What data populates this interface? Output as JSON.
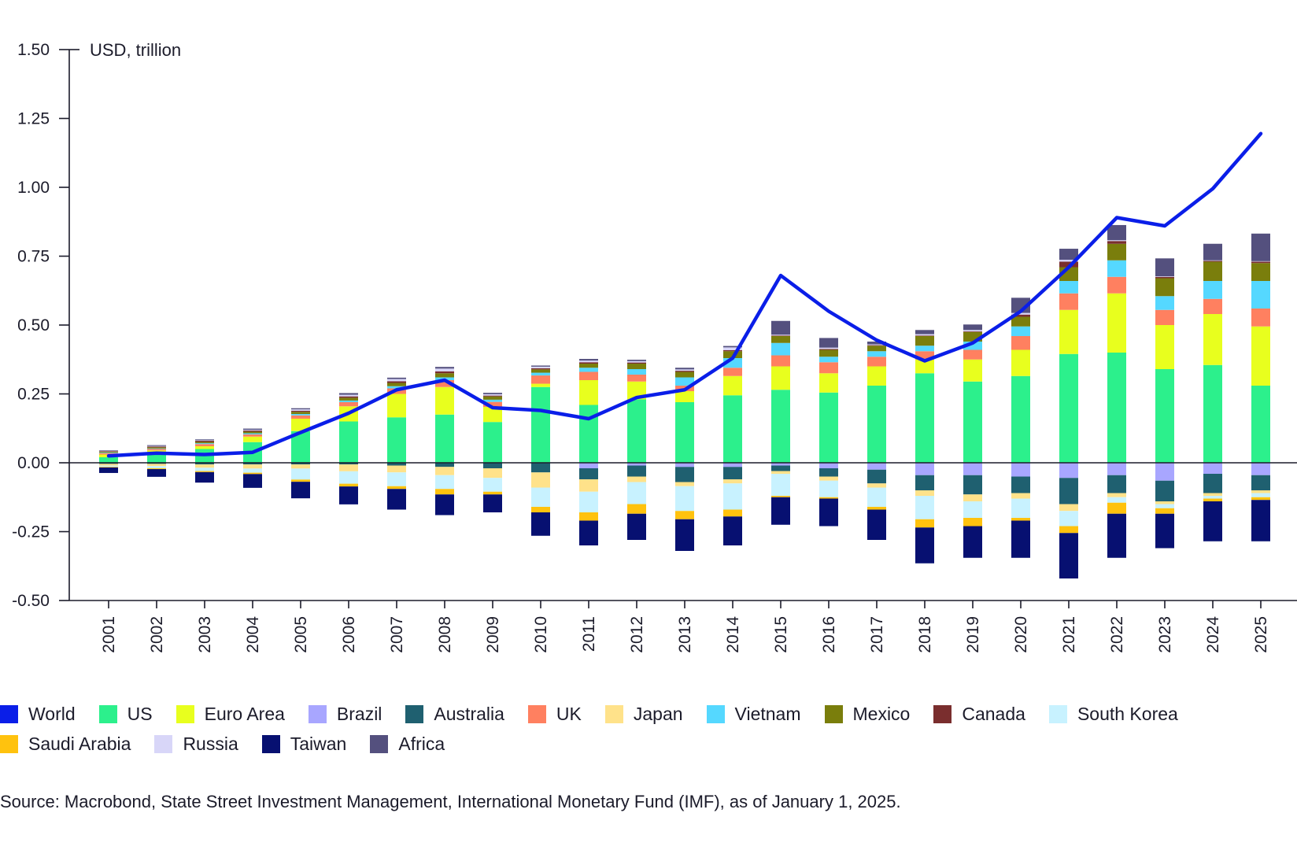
{
  "chart_data": {
    "type": "bar",
    "subtype": "stacked-bar-with-line",
    "unit_label": "USD, trillion",
    "ylim": [
      -0.5,
      1.5
    ],
    "yticks": [
      "1.50",
      "1.25",
      "1.00",
      "0.75",
      "0.50",
      "0.25",
      "0.00",
      "-0.25",
      "-0.50"
    ],
    "ytick_values": [
      1.5,
      1.25,
      1.0,
      0.75,
      0.5,
      0.25,
      0.0,
      -0.25,
      -0.5
    ],
    "categories": [
      "2001",
      "2002",
      "2003",
      "2004",
      "2005",
      "2006",
      "2007",
      "2008",
      "2009",
      "2010",
      "2011",
      "2012",
      "2013",
      "2014",
      "2015",
      "2016",
      "2017",
      "2018",
      "2019",
      "2020",
      "2021",
      "2022",
      "2023",
      "2024",
      "2025"
    ],
    "legend_order": [
      "World",
      "US",
      "Euro Area",
      "Brazil",
      "Australia",
      "UK",
      "Japan",
      "Vietnam",
      "Mexico",
      "Canada",
      "South Korea",
      "Saudi Arabia",
      "Russia",
      "Taiwan",
      "Africa"
    ],
    "line": {
      "name": "World",
      "color": "#0a1ee8",
      "values": [
        0.025,
        0.035,
        0.03,
        0.038,
        0.11,
        0.18,
        0.265,
        0.3,
        0.2,
        0.19,
        0.16,
        0.237,
        0.265,
        0.38,
        0.68,
        0.55,
        0.445,
        0.37,
        0.435,
        0.55,
        0.71,
        0.89,
        0.86,
        0.995,
        1.195
      ]
    },
    "series": [
      {
        "name": "US",
        "color": "#2cf08c",
        "values": [
          0.02,
          0.035,
          0.05,
          0.075,
          0.115,
          0.15,
          0.165,
          0.175,
          0.148,
          0.275,
          0.21,
          0.23,
          0.22,
          0.245,
          0.265,
          0.255,
          0.28,
          0.325,
          0.295,
          0.315,
          0.395,
          0.4,
          0.34,
          0.355,
          0.28
        ]
      },
      {
        "name": "Euro Area",
        "color": "#e8ff1e",
        "values": [
          0.01,
          0.01,
          0.01,
          0.02,
          0.045,
          0.055,
          0.085,
          0.1,
          0.055,
          0.012,
          0.09,
          0.065,
          0.04,
          0.07,
          0.085,
          0.07,
          0.07,
          0.05,
          0.08,
          0.095,
          0.16,
          0.215,
          0.16,
          0.185,
          0.215
        ]
      },
      {
        "name": "Brazil",
        "color": "#a8a6ff",
        "values": [
          0,
          0,
          0,
          0,
          0,
          0,
          0,
          0,
          0,
          0,
          -0.02,
          -0.01,
          -0.015,
          -0.015,
          -0.01,
          -0.02,
          -0.025,
          -0.045,
          -0.045,
          -0.05,
          -0.055,
          -0.045,
          -0.065,
          -0.04,
          -0.045
        ]
      },
      {
        "name": "Australia",
        "color": "#1f6070",
        "values": [
          -0.004,
          -0.004,
          -0.006,
          -0.006,
          -0.006,
          -0.006,
          -0.01,
          -0.015,
          -0.02,
          -0.035,
          -0.04,
          -0.04,
          -0.055,
          -0.045,
          -0.02,
          -0.03,
          -0.05,
          -0.055,
          -0.07,
          -0.06,
          -0.095,
          -0.065,
          -0.075,
          -0.07,
          -0.055
        ]
      },
      {
        "name": "UK",
        "color": "#ff8060",
        "values": [
          0.005,
          0.005,
          0.008,
          0.008,
          0.012,
          0.015,
          0.02,
          0.025,
          0.018,
          0.03,
          0.03,
          0.025,
          0.02,
          0.03,
          0.04,
          0.04,
          0.035,
          0.03,
          0.035,
          0.05,
          0.06,
          0.06,
          0.055,
          0.055,
          0.065
        ]
      },
      {
        "name": "Japan",
        "color": "#ffe28a",
        "values": [
          -0.006,
          -0.008,
          -0.012,
          -0.015,
          -0.015,
          -0.025,
          -0.025,
          -0.03,
          -0.035,
          -0.055,
          -0.045,
          -0.02,
          -0.015,
          -0.015,
          -0.01,
          -0.015,
          -0.015,
          -0.02,
          -0.025,
          -0.02,
          -0.025,
          -0.015,
          -0.01,
          -0.01,
          -0.01
        ]
      },
      {
        "name": "Vietnam",
        "color": "#55d8ff",
        "values": [
          0.002,
          0.002,
          0.003,
          0.004,
          0.005,
          0.006,
          0.008,
          0.01,
          0.008,
          0.01,
          0.015,
          0.02,
          0.03,
          0.035,
          0.045,
          0.02,
          0.02,
          0.02,
          0.03,
          0.035,
          0.045,
          0.06,
          0.05,
          0.065,
          0.1
        ]
      },
      {
        "name": "Mexico",
        "color": "#7a7e0c",
        "values": [
          0.003,
          0.004,
          0.005,
          0.006,
          0.008,
          0.01,
          0.012,
          0.015,
          0.012,
          0.012,
          0.015,
          0.02,
          0.02,
          0.025,
          0.025,
          0.025,
          0.02,
          0.035,
          0.035,
          0.035,
          0.05,
          0.06,
          0.065,
          0.07,
          0.065
        ]
      },
      {
        "name": "Canada",
        "color": "#7a2e2e",
        "values": [
          0.002,
          0.003,
          0.004,
          0.004,
          0.004,
          0.005,
          0.006,
          0.007,
          0.003,
          0.004,
          0.005,
          0.004,
          0.004,
          0.004,
          0.002,
          0.003,
          0.002,
          0.002,
          0.002,
          0.008,
          0.02,
          0.01,
          0.005,
          0.003,
          0.005
        ]
      },
      {
        "name": "South Korea",
        "color": "#c8f2ff",
        "values": [
          -0.005,
          -0.008,
          -0.012,
          -0.015,
          -0.04,
          -0.045,
          -0.05,
          -0.05,
          -0.05,
          -0.07,
          -0.075,
          -0.08,
          -0.09,
          -0.095,
          -0.08,
          -0.06,
          -0.07,
          -0.085,
          -0.06,
          -0.07,
          -0.055,
          -0.02,
          -0.015,
          -0.01,
          -0.015
        ]
      },
      {
        "name": "Saudi Arabia",
        "color": "#ffc20e",
        "values": [
          -0.002,
          -0.003,
          -0.004,
          -0.005,
          -0.008,
          -0.01,
          -0.01,
          -0.02,
          -0.01,
          -0.02,
          -0.03,
          -0.035,
          -0.03,
          -0.025,
          -0.005,
          -0.005,
          -0.01,
          -0.03,
          -0.03,
          -0.01,
          -0.025,
          -0.04,
          -0.02,
          -0.01,
          -0.01
        ]
      },
      {
        "name": "Russia",
        "color": "#d8d6f8",
        "values": [
          0.001,
          0.002,
          0.002,
          0.003,
          0.005,
          0.006,
          0.008,
          0.01,
          0.005,
          0.006,
          0.006,
          0.005,
          0.005,
          0.01,
          0.003,
          0.005,
          0.003,
          0.005,
          0.005,
          0.006,
          0.007,
          0.003,
          0.002,
          0.002,
          0.002
        ]
      },
      {
        "name": "Taiwan",
        "color": "#071071",
        "values": [
          -0.02,
          -0.028,
          -0.038,
          -0.05,
          -0.06,
          -0.065,
          -0.075,
          -0.075,
          -0.065,
          -0.085,
          -0.09,
          -0.095,
          -0.115,
          -0.105,
          -0.1,
          -0.1,
          -0.11,
          -0.13,
          -0.115,
          -0.135,
          -0.165,
          -0.16,
          -0.125,
          -0.145,
          -0.15
        ]
      },
      {
        "name": "Africa",
        "color": "#54507e",
        "values": [
          0.002,
          0.003,
          0.003,
          0.004,
          0.004,
          0.006,
          0.005,
          0.006,
          0.005,
          0.004,
          0.006,
          0.005,
          0.006,
          0.005,
          0.05,
          0.035,
          0.01,
          0.015,
          0.02,
          0.055,
          0.04,
          0.055,
          0.065,
          0.06,
          0.1
        ]
      }
    ]
  },
  "legend": {
    "row1": [
      {
        "label": "World",
        "color": "#0a1ee8"
      },
      {
        "label": "US",
        "color": "#2cf08c"
      },
      {
        "label": "Euro Area",
        "color": "#e8ff1e"
      },
      {
        "label": "Brazil",
        "color": "#a8a6ff"
      },
      {
        "label": "Australia",
        "color": "#1f6070"
      },
      {
        "label": "UK",
        "color": "#ff8060"
      },
      {
        "label": "Japan",
        "color": "#ffe28a"
      },
      {
        "label": "Vietnam",
        "color": "#55d8ff"
      },
      {
        "label": "Mexico",
        "color": "#7a7e0c"
      },
      {
        "label": "Canada",
        "color": "#7a2e2e"
      },
      {
        "label": "South Korea",
        "color": "#c8f2ff"
      }
    ],
    "row2": [
      {
        "label": "Saudi Arabia",
        "color": "#ffc20e"
      },
      {
        "label": "Russia",
        "color": "#d8d6f8"
      },
      {
        "label": "Taiwan",
        "color": "#071071"
      },
      {
        "label": "Africa",
        "color": "#54507e"
      }
    ]
  },
  "source": "Source: Macrobond, State Street Investment Management, International Monetary Fund (IMF), as of January 1, 2025."
}
